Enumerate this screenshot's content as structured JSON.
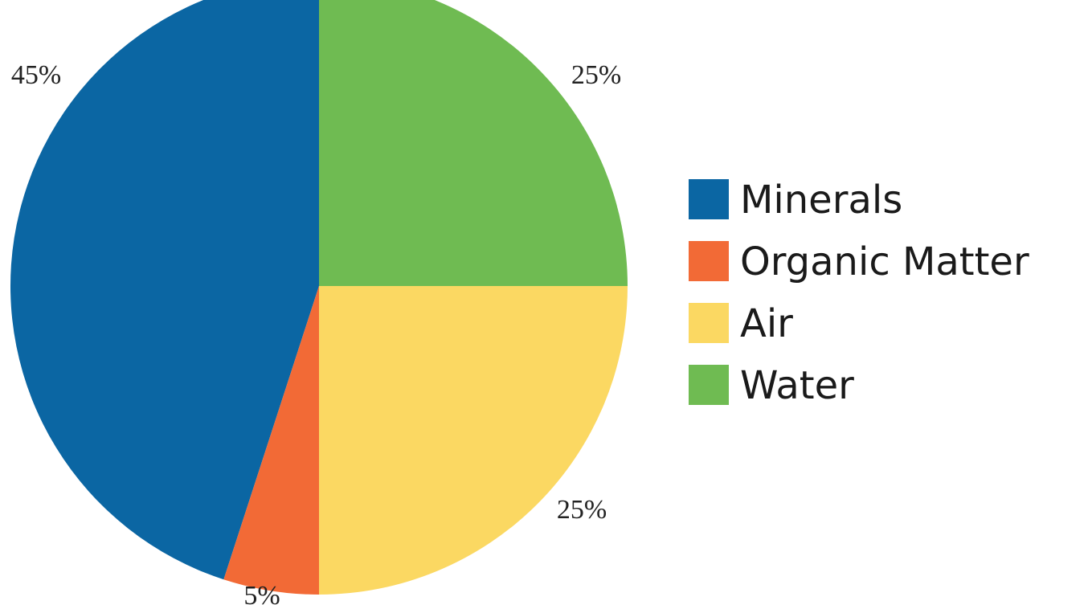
{
  "chart_data": {
    "type": "pie",
    "title": "",
    "slices": [
      {
        "label": "Minerals",
        "value": 45,
        "value_label": "45%",
        "color": "#0b66a3"
      },
      {
        "label": "Organic Matter",
        "value": 5,
        "value_label": "5%",
        "color": "#f26a36"
      },
      {
        "label": "Air",
        "value": 25,
        "value_label": "25%",
        "color": "#fbd862"
      },
      {
        "label": "Water",
        "value": 25,
        "value_label": "25%",
        "color": "#6fbb52"
      }
    ],
    "legend": {
      "placement": "right",
      "entries": [
        "Minerals",
        "Organic Matter",
        "Air",
        "Water"
      ]
    }
  }
}
